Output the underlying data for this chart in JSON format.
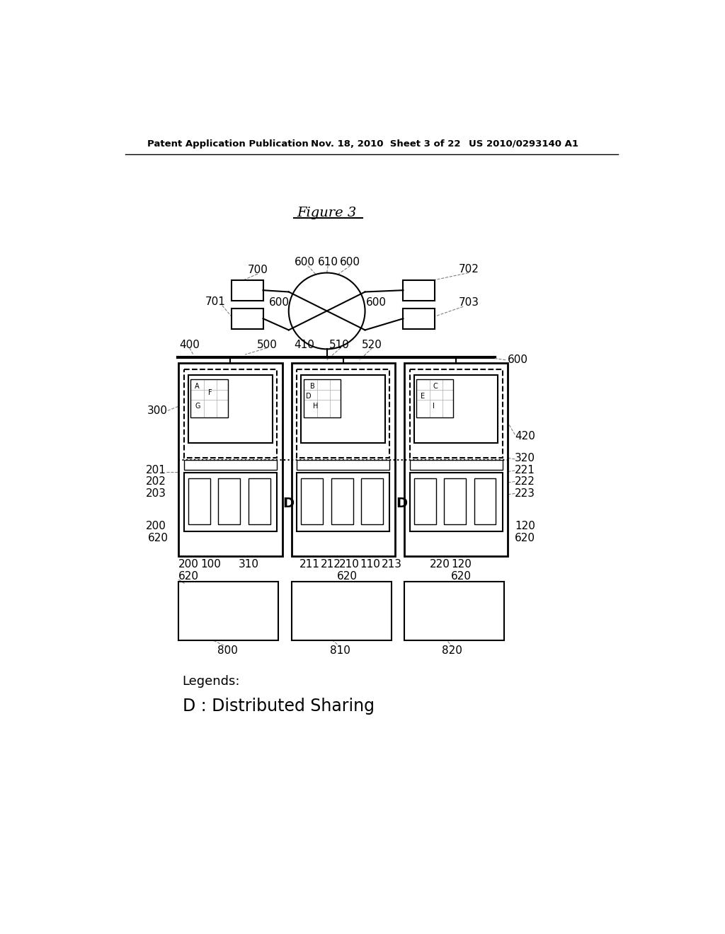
{
  "bg_color": "#ffffff",
  "header_left": "Patent Application Publication",
  "header_mid": "Nov. 18, 2010  Sheet 3 of 22",
  "header_right": "US 2010/0293140 A1",
  "figure_title": "Figure 3",
  "legend1": "Legends:",
  "legend2": "D : Distributed Sharing"
}
